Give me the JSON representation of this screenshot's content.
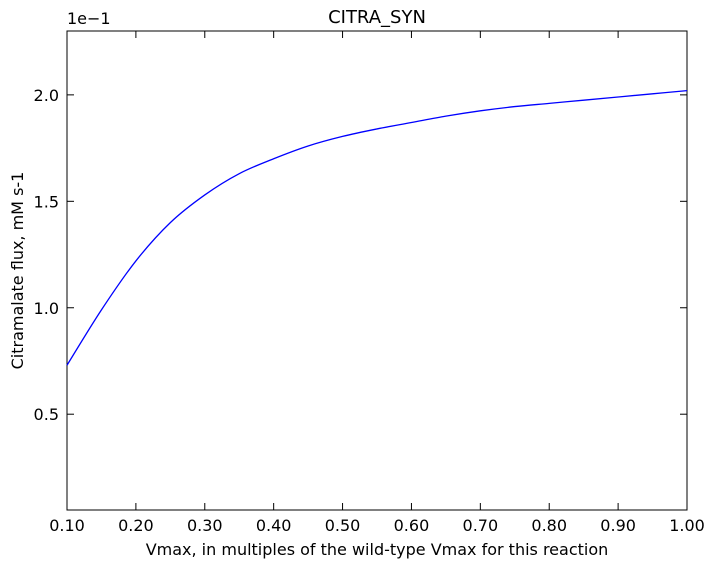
{
  "chart_data": {
    "type": "line",
    "title": "CITRA_SYN",
    "xlabel": "Vmax, in multiples of the wild-type Vmax for this reaction",
    "ylabel": "Citramalate flux, mM s-1",
    "y_offset_label": "1e−1",
    "xlim": [
      0.1,
      1.0
    ],
    "ylim": [
      0.05,
      2.3
    ],
    "grid": false,
    "x_ticks": [
      0.1,
      0.2,
      0.3,
      0.4,
      0.5,
      0.6,
      0.7,
      0.8,
      0.9,
      1.0
    ],
    "x_tick_labels": [
      "0.10",
      "0.20",
      "0.30",
      "0.40",
      "0.50",
      "0.60",
      "0.70",
      "0.80",
      "0.90",
      "1.00"
    ],
    "y_ticks": [
      0.5,
      1.0,
      1.5,
      2.0
    ],
    "y_tick_labels": [
      "0.5",
      "1.0",
      "1.5",
      "2.0"
    ],
    "series": [
      {
        "color": "#0000ff",
        "x": [
          0.1,
          0.15,
          0.2,
          0.25,
          0.3,
          0.35,
          0.4,
          0.45,
          0.5,
          0.55,
          0.6,
          0.65,
          0.7,
          0.75,
          0.8,
          0.85,
          0.9,
          0.95,
          1.0
        ],
        "y": [
          0.73,
          0.99,
          1.22,
          1.4,
          1.53,
          1.63,
          1.7,
          1.76,
          1.805,
          1.84,
          1.87,
          1.9,
          1.925,
          1.945,
          1.96,
          1.975,
          1.99,
          2.005,
          2.02
        ]
      }
    ]
  }
}
